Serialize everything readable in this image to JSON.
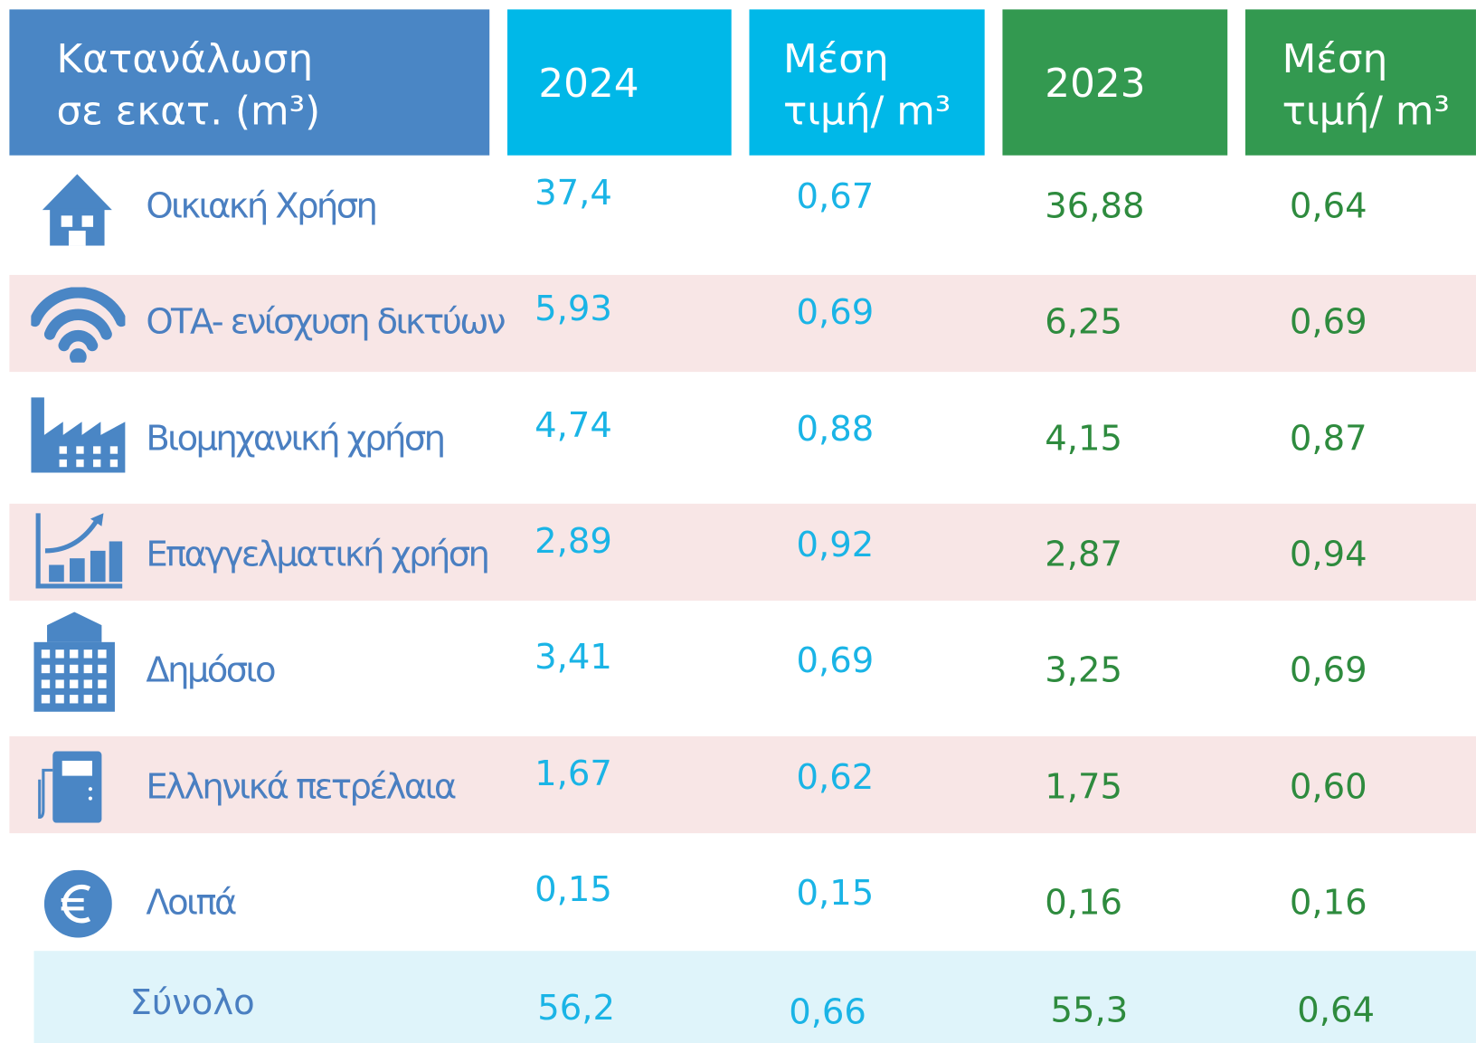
{
  "header": {
    "label_line1": "Κατανάλωση",
    "label_line2": "σε εκατ. (m³)",
    "year_a": "2024",
    "price_a_line1": "Μέση",
    "price_a_line2": "τιμή/ m³",
    "year_b": "2023",
    "price_b_line1": "Μέση",
    "price_b_line2": "τιμή/ m³"
  },
  "table": {
    "rows": [
      [
        "Οικιακή Χρήση",
        "37,4",
        "0,67",
        "36,88",
        "0,64"
      ],
      [
        "ΟΤΑ- ενίσχυση δικτύων",
        "5,93",
        "0,69",
        "6,25",
        "0,69"
      ],
      [
        "Βιομηχανική χρήση",
        "4,74",
        "0,88",
        "4,15",
        "0,87"
      ],
      [
        "Επαγγελματική χρήση",
        "2,89",
        "0,92",
        "2,87",
        "0,94"
      ],
      [
        "Δημόσιο",
        "3,41",
        "0,69",
        "3,25",
        "0,69"
      ],
      [
        "Ελληνικά πετρέλαια",
        "1,67",
        "0,62",
        "1,75",
        "0,60"
      ],
      [
        "Λοιπά",
        "0,15",
        "0,15",
        "0,16",
        "0,16"
      ]
    ],
    "total": [
      "Σύνολο",
      "56,2",
      "0,66",
      "55,3",
      "0,64"
    ]
  }
}
